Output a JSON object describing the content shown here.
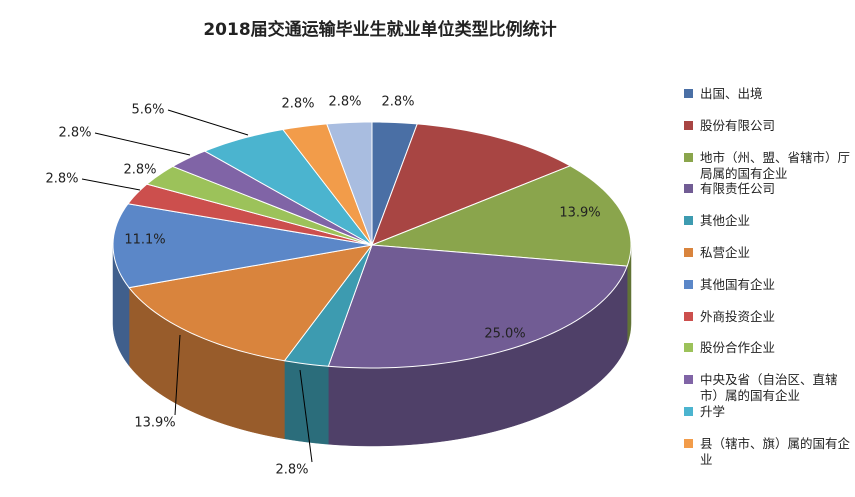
{
  "chart_data": {
    "type": "pie3d",
    "title": "2018届交通运输毕业生就业单位类型比例统计",
    "categories": [
      "出国、出境",
      "股份有限公司",
      "地市（州、盟、省辖市）厅局属的国有企业",
      "有限责任公司",
      "其他企业",
      "私营企业",
      "其他国有企业",
      "外商投资企业",
      "股份合作企业",
      "中央及省（自治区、直辖市）属的国有企业",
      "升学",
      "县（辖市、旗）属的国有企业",
      null
    ],
    "values": [
      2.8,
      11.1,
      13.9,
      25.0,
      2.8,
      13.9,
      11.1,
      2.8,
      2.8,
      2.8,
      5.6,
      2.8,
      2.8
    ],
    "value_labels": [
      "2.8%",
      null,
      "13.9%",
      "25.0%",
      "2.8%",
      "13.9%",
      "11.1%",
      "2.8%",
      "2.8%",
      "2.8%",
      "5.6%",
      "2.8%",
      "2.8%"
    ],
    "colors": [
      "#4a6fa5",
      "#a84543",
      "#8aa54c",
      "#715c94",
      "#3d9bb0",
      "#d9843d",
      "#5b87c8",
      "#cc4f4d",
      "#9cc25a",
      "#8064a6",
      "#4bb4cf",
      "#f29c4a",
      "#a9bde0"
    ]
  }
}
